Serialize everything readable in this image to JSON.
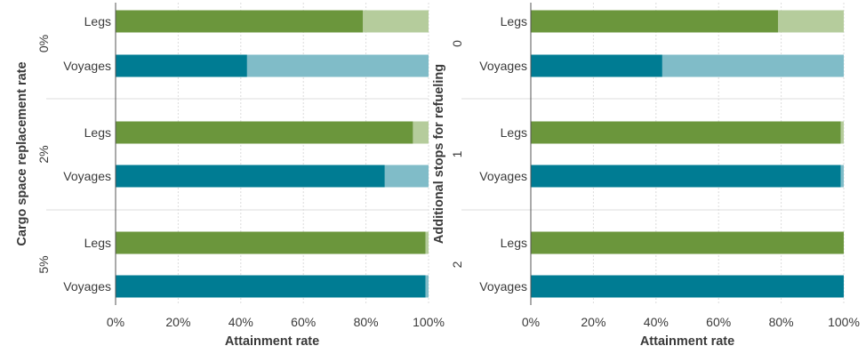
{
  "colors": {
    "legs_attained": "#6b963c",
    "legs_remaining": "#b5cc9c",
    "voyages_attained": "#007c93",
    "voyages_remaining": "#80bcc8",
    "grid": "#dcdcdc",
    "axis": "#555555",
    "text": "#3a3a3a"
  },
  "chart_data": [
    {
      "type": "bar",
      "orientation": "horizontal",
      "stacked": true,
      "xlabel": "Attainment rate",
      "ylabel": "Cargo space replacement rate",
      "xlim": [
        0,
        100
      ],
      "xticks": [
        "0%",
        "20%",
        "40%",
        "60%",
        "80%",
        "100%"
      ],
      "groups": [
        {
          "label": "0%",
          "bars": [
            {
              "category": "Legs",
              "value": 79
            },
            {
              "category": "Voyages",
              "value": 42
            }
          ]
        },
        {
          "label": "2%",
          "bars": [
            {
              "category": "Legs",
              "value": 95
            },
            {
              "category": "Voyages",
              "value": 86
            }
          ]
        },
        {
          "label": "5%",
          "bars": [
            {
              "category": "Legs",
              "value": 99
            },
            {
              "category": "Voyages",
              "value": 99
            }
          ]
        }
      ]
    },
    {
      "type": "bar",
      "orientation": "horizontal",
      "stacked": true,
      "xlabel": "Attainment rate",
      "ylabel": "Additional stops for refueling",
      "xlim": [
        0,
        100
      ],
      "xticks": [
        "0%",
        "20%",
        "40%",
        "60%",
        "80%",
        "100%"
      ],
      "groups": [
        {
          "label": "0",
          "bars": [
            {
              "category": "Legs",
              "value": 79
            },
            {
              "category": "Voyages",
              "value": 42
            }
          ]
        },
        {
          "label": "1",
          "bars": [
            {
              "category": "Legs",
              "value": 99
            },
            {
              "category": "Voyages",
              "value": 99
            }
          ]
        },
        {
          "label": "2",
          "bars": [
            {
              "category": "Legs",
              "value": 100
            },
            {
              "category": "Voyages",
              "value": 100
            }
          ]
        }
      ]
    }
  ]
}
